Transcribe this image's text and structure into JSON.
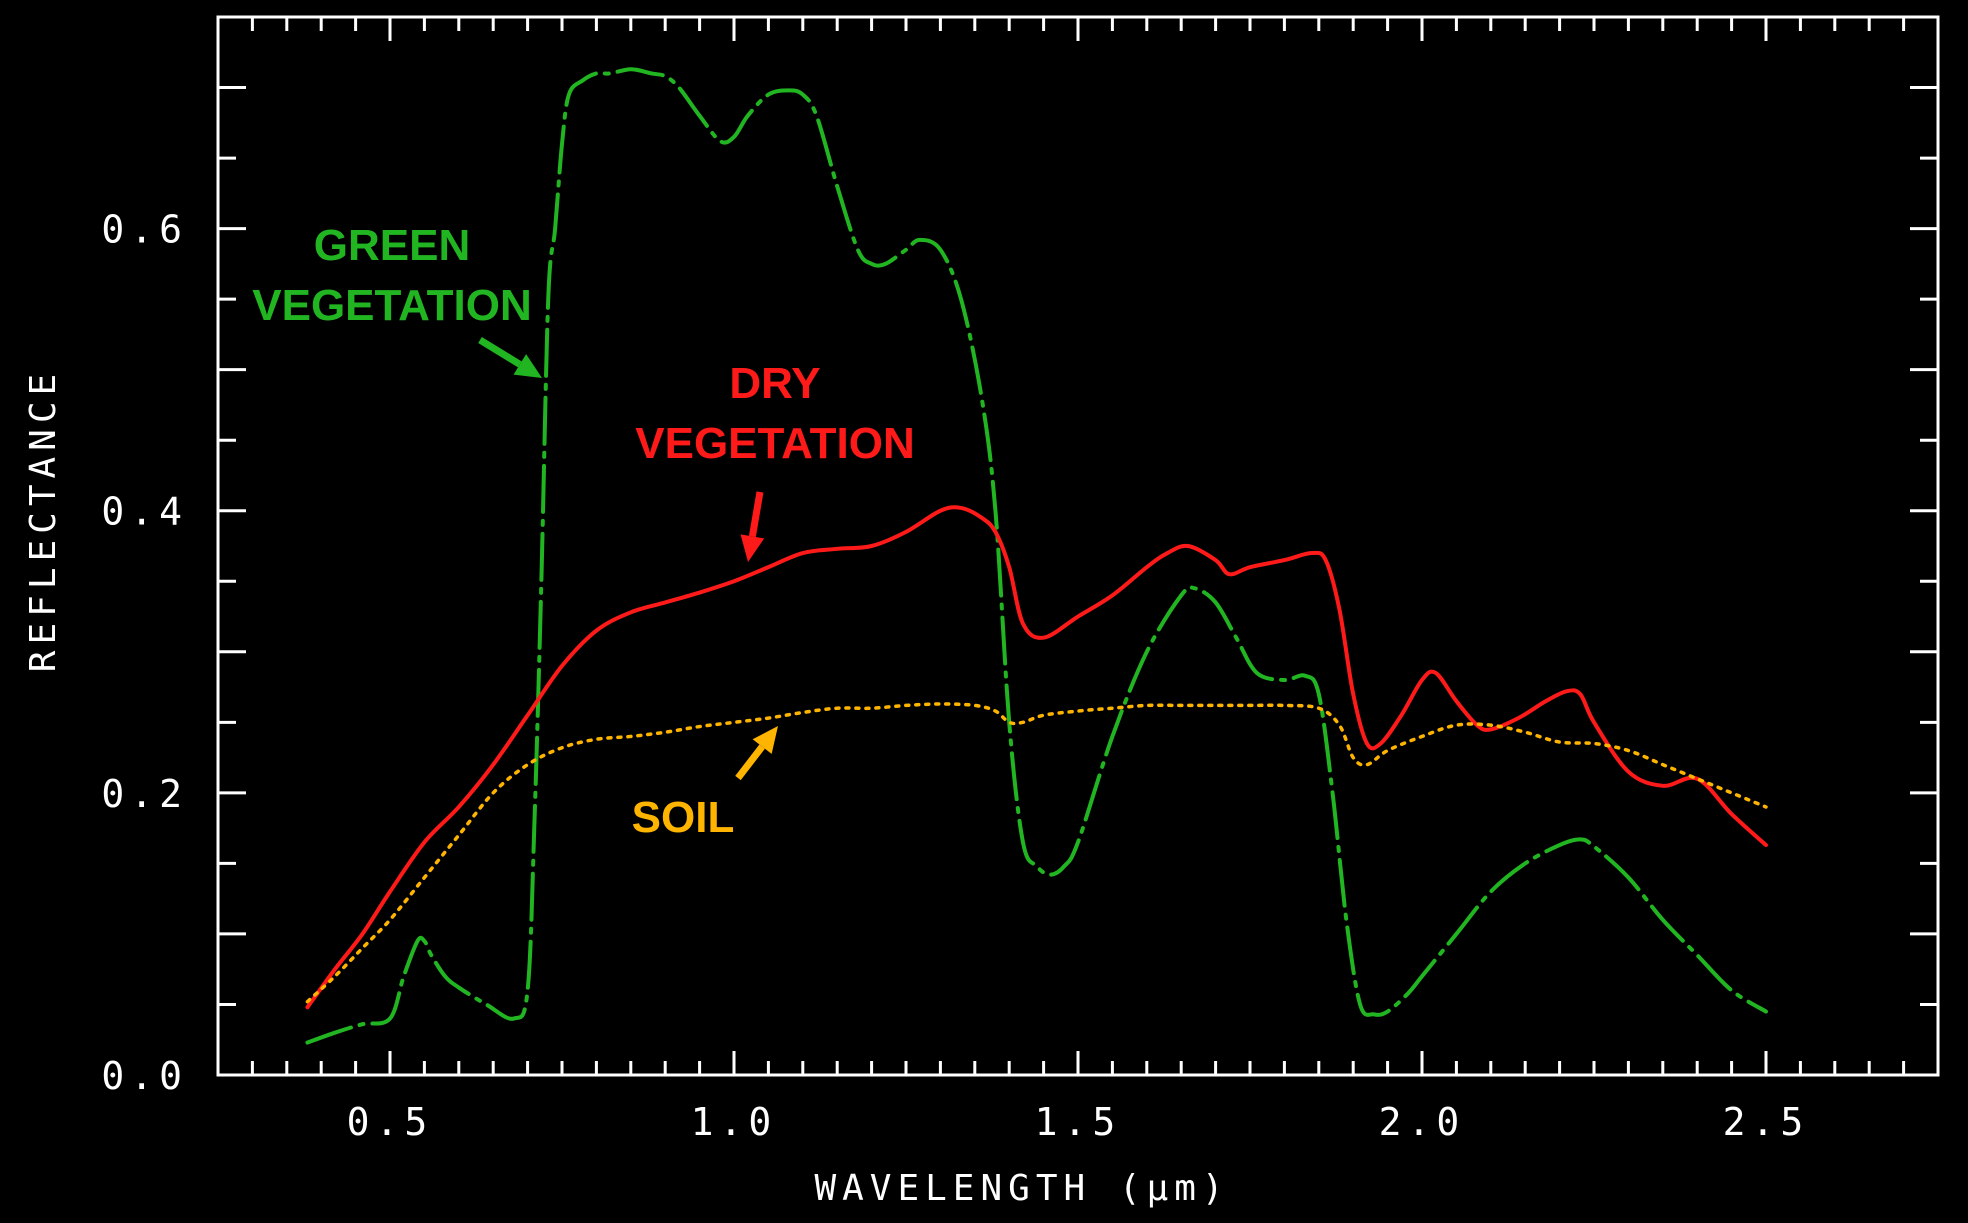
{
  "chart_data": {
    "type": "line",
    "title": "",
    "xlabel": "WAVELENGTH (µm)",
    "ylabel": "REFLECTANCE",
    "xlim": [
      0.25,
      2.75
    ],
    "ylim": [
      0.0,
      0.75
    ],
    "x_ticks": [
      {
        "value": 0.5,
        "label": "0.5"
      },
      {
        "value": 1.0,
        "label": "1.0"
      },
      {
        "value": 1.5,
        "label": "1.5"
      },
      {
        "value": 2.0,
        "label": "2.0"
      },
      {
        "value": 2.5,
        "label": "2.5"
      }
    ],
    "y_ticks": [
      {
        "value": 0.0,
        "label": "0.0"
      },
      {
        "value": 0.2,
        "label": "0.2"
      },
      {
        "value": 0.4,
        "label": "0.4"
      },
      {
        "value": 0.6,
        "label": "0.6"
      }
    ],
    "grid": false,
    "series": [
      {
        "name": "GREEN VEGETATION",
        "color": "#22b522",
        "style": "dashdot",
        "x": [
          0.38,
          0.42,
          0.46,
          0.5,
          0.52,
          0.54,
          0.55,
          0.56,
          0.58,
          0.6,
          0.64,
          0.68,
          0.7,
          0.71,
          0.72,
          0.73,
          0.74,
          0.75,
          0.76,
          0.78,
          0.8,
          0.82,
          0.85,
          0.88,
          0.9,
          0.92,
          0.95,
          0.98,
          1.0,
          1.02,
          1.05,
          1.08,
          1.1,
          1.12,
          1.15,
          1.18,
          1.2,
          1.22,
          1.25,
          1.27,
          1.3,
          1.33,
          1.36,
          1.38,
          1.4,
          1.42,
          1.44,
          1.46,
          1.48,
          1.5,
          1.55,
          1.6,
          1.65,
          1.67,
          1.7,
          1.73,
          1.76,
          1.8,
          1.83,
          1.85,
          1.87,
          1.89,
          1.91,
          1.93,
          1.95,
          1.98,
          2.0,
          2.05,
          2.1,
          2.15,
          2.2,
          2.23,
          2.25,
          2.3,
          2.35,
          2.4,
          2.45,
          2.5
        ],
        "y": [
          0.023,
          0.03,
          0.036,
          0.04,
          0.07,
          0.095,
          0.095,
          0.085,
          0.07,
          0.062,
          0.05,
          0.04,
          0.06,
          0.18,
          0.35,
          0.55,
          0.6,
          0.66,
          0.695,
          0.705,
          0.71,
          0.71,
          0.713,
          0.71,
          0.708,
          0.7,
          0.68,
          0.662,
          0.665,
          0.68,
          0.695,
          0.698,
          0.695,
          0.68,
          0.63,
          0.585,
          0.575,
          0.575,
          0.585,
          0.592,
          0.585,
          0.55,
          0.48,
          0.4,
          0.25,
          0.165,
          0.148,
          0.142,
          0.148,
          0.165,
          0.24,
          0.3,
          0.34,
          0.345,
          0.335,
          0.31,
          0.285,
          0.28,
          0.283,
          0.27,
          0.2,
          0.11,
          0.05,
          0.043,
          0.045,
          0.058,
          0.07,
          0.1,
          0.13,
          0.15,
          0.163,
          0.167,
          0.162,
          0.14,
          0.11,
          0.085,
          0.06,
          0.045
        ]
      },
      {
        "name": "DRY VEGETATION",
        "color": "#ff1a1a",
        "style": "solid",
        "x": [
          0.38,
          0.42,
          0.46,
          0.5,
          0.55,
          0.6,
          0.65,
          0.7,
          0.75,
          0.8,
          0.85,
          0.9,
          0.95,
          1.0,
          1.05,
          1.1,
          1.15,
          1.2,
          1.25,
          1.3,
          1.33,
          1.36,
          1.38,
          1.4,
          1.42,
          1.45,
          1.5,
          1.55,
          1.6,
          1.63,
          1.66,
          1.7,
          1.72,
          1.75,
          1.8,
          1.84,
          1.86,
          1.88,
          1.9,
          1.92,
          1.94,
          1.97,
          2.0,
          2.02,
          2.05,
          2.08,
          2.1,
          2.14,
          2.18,
          2.21,
          2.23,
          2.25,
          2.3,
          2.35,
          2.4,
          2.45,
          2.5
        ],
        "y": [
          0.048,
          0.075,
          0.1,
          0.13,
          0.165,
          0.19,
          0.22,
          0.255,
          0.29,
          0.315,
          0.328,
          0.335,
          0.342,
          0.35,
          0.36,
          0.37,
          0.373,
          0.375,
          0.385,
          0.4,
          0.402,
          0.395,
          0.385,
          0.36,
          0.32,
          0.31,
          0.325,
          0.34,
          0.36,
          0.37,
          0.375,
          0.365,
          0.355,
          0.36,
          0.365,
          0.37,
          0.365,
          0.33,
          0.27,
          0.235,
          0.235,
          0.255,
          0.28,
          0.285,
          0.265,
          0.248,
          0.245,
          0.253,
          0.265,
          0.272,
          0.27,
          0.25,
          0.215,
          0.205,
          0.21,
          0.185,
          0.163
        ]
      },
      {
        "name": "SOIL",
        "color": "#ffb400",
        "style": "dotted",
        "x": [
          0.38,
          0.42,
          0.46,
          0.5,
          0.55,
          0.6,
          0.65,
          0.7,
          0.75,
          0.8,
          0.85,
          0.9,
          0.95,
          1.0,
          1.05,
          1.1,
          1.15,
          1.2,
          1.25,
          1.3,
          1.35,
          1.38,
          1.4,
          1.42,
          1.45,
          1.5,
          1.55,
          1.6,
          1.65,
          1.7,
          1.75,
          1.8,
          1.85,
          1.88,
          1.9,
          1.92,
          1.95,
          2.0,
          2.05,
          2.1,
          2.15,
          2.2,
          2.25,
          2.3,
          2.35,
          2.4,
          2.45,
          2.5
        ],
        "y": [
          0.052,
          0.07,
          0.09,
          0.11,
          0.14,
          0.17,
          0.2,
          0.22,
          0.232,
          0.238,
          0.24,
          0.243,
          0.247,
          0.25,
          0.253,
          0.257,
          0.26,
          0.26,
          0.262,
          0.263,
          0.262,
          0.258,
          0.25,
          0.25,
          0.255,
          0.258,
          0.26,
          0.262,
          0.262,
          0.262,
          0.262,
          0.262,
          0.26,
          0.248,
          0.225,
          0.22,
          0.23,
          0.24,
          0.248,
          0.248,
          0.243,
          0.236,
          0.235,
          0.23,
          0.22,
          0.21,
          0.2,
          0.19
        ]
      }
    ],
    "annotations": [
      {
        "key": "green",
        "lines": [
          "GREEN",
          "VEGETATION"
        ],
        "color": "#22b522"
      },
      {
        "key": "dry",
        "lines": [
          "DRY",
          "VEGETATION"
        ],
        "color": "#ff1a1a"
      },
      {
        "key": "soil",
        "lines": [
          "SOIL"
        ],
        "color": "#ffb400"
      }
    ]
  }
}
